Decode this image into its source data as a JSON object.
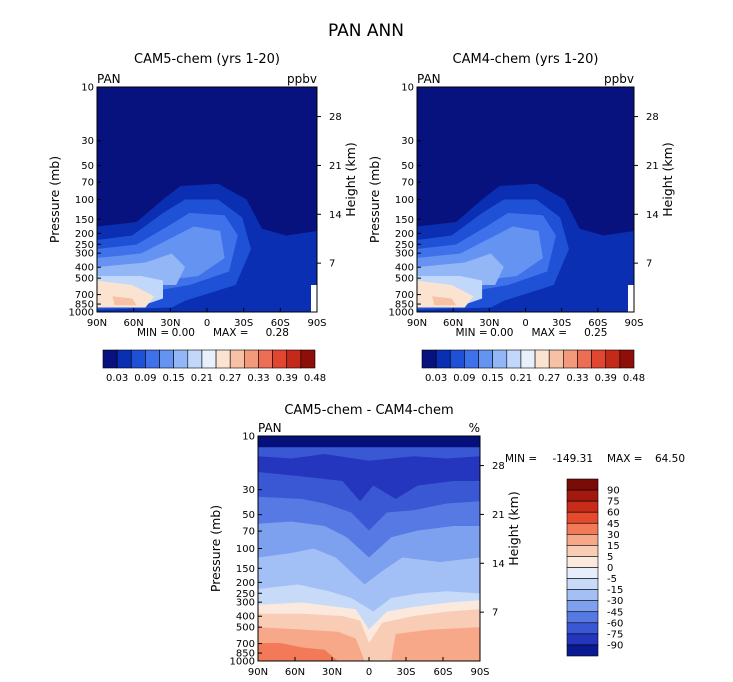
{
  "figure": {
    "title": "PAN ANN"
  },
  "chart_data": [
    {
      "type": "heatmap",
      "title": "CAM5-chem (yrs 1-20)",
      "variable": "PAN",
      "units": "ppbv",
      "xlabel": "",
      "ylabel": "Pressure (mb)",
      "ylabel_right": "Height (km)",
      "x_ticks": [
        "90N",
        "60N",
        "30N",
        "0",
        "30S",
        "60S",
        "90S"
      ],
      "y_ticks": [
        "10",
        "30",
        "50",
        "70",
        "100",
        "150",
        "200",
        "250",
        "300",
        "400",
        "500",
        "700",
        "850",
        "1000"
      ],
      "y_scale": "log",
      "height_ticks": [
        "28",
        "21",
        "14",
        "7"
      ],
      "min_label": "MIN =",
      "min": "0.00",
      "max_label": "MAX =",
      "max": "0.28",
      "colorbar_labels": [
        "0.03",
        "0.09",
        "0.15",
        "0.21",
        "0.27",
        "0.33",
        "0.39",
        "0.48"
      ]
    },
    {
      "type": "heatmap",
      "title": "CAM4-chem (yrs 1-20)",
      "variable": "PAN",
      "units": "ppbv",
      "xlabel": "",
      "ylabel": "Pressure (mb)",
      "ylabel_right": "Height (km)",
      "x_ticks": [
        "90N",
        "60N",
        "30N",
        "0",
        "30S",
        "60S",
        "90S"
      ],
      "y_ticks": [
        "10",
        "30",
        "50",
        "70",
        "100",
        "150",
        "200",
        "250",
        "300",
        "400",
        "500",
        "700",
        "850",
        "1000"
      ],
      "y_scale": "log",
      "height_ticks": [
        "28",
        "21",
        "14",
        "7"
      ],
      "min_label": "MIN =",
      "min": "0.00",
      "max_label": "MAX =",
      "max": "0.25",
      "colorbar_labels": [
        "0.03",
        "0.09",
        "0.15",
        "0.21",
        "0.27",
        "0.33",
        "0.39",
        "0.48"
      ]
    },
    {
      "type": "heatmap",
      "title": "CAM5-chem - CAM4-chem",
      "variable": "PAN",
      "units": "%",
      "xlabel": "",
      "ylabel": "Pressure (mb)",
      "ylabel_right": "Height (km)",
      "x_ticks": [
        "90N",
        "60N",
        "30N",
        "0",
        "30S",
        "60S",
        "90S"
      ],
      "y_ticks": [
        "10",
        "30",
        "50",
        "70",
        "100",
        "150",
        "200",
        "250",
        "300",
        "400",
        "500",
        "700",
        "850",
        "1000"
      ],
      "y_scale": "log",
      "height_ticks": [
        "28",
        "21",
        "14",
        "7"
      ],
      "min_label": "MIN =",
      "min": "-149.31",
      "max_label": "MAX =",
      "max": "64.50",
      "colorbar_labels": [
        "90",
        "75",
        "60",
        "45",
        "30",
        "15",
        "5",
        "0",
        "-5",
        "-15",
        "-30",
        "-45",
        "-60",
        "-75",
        "-90"
      ]
    }
  ],
  "colors": {
    "abs_scale": [
      "#08127e",
      "#0a2fb2",
      "#1f51d6",
      "#3f72ea",
      "#6593f2",
      "#92b6f6",
      "#c2d8fa",
      "#e8f0fc",
      "#fbe3d2",
      "#f7c1a6",
      "#f3997c",
      "#ec6e55",
      "#e04630",
      "#c42a1a",
      "#8e0f0a"
    ],
    "diff_scale": [
      "#7a0c06",
      "#a4190e",
      "#c82b18",
      "#e54a2c",
      "#f27a58",
      "#f7a888",
      "#f9ccb6",
      "#fbe9de",
      "#e6eefb",
      "#c7dbf9",
      "#a3c0f6",
      "#7da0ef",
      "#5679e3",
      "#3a58d4",
      "#2436be",
      "#0b1a93",
      "#06107a"
    ]
  }
}
